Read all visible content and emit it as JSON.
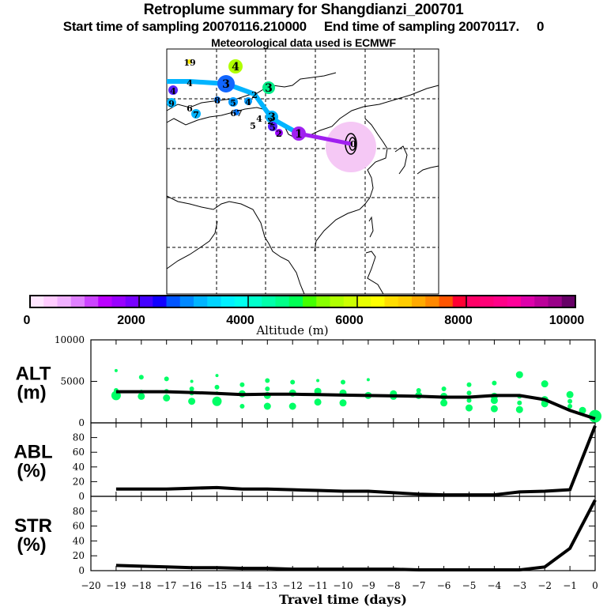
{
  "header": {
    "title": "Retroplume summary for Shangdianzi_200701",
    "subtitle": "Start time of sampling 20070116.210000     End time of sampling 20070117.     0",
    "met_data": "Meteorological data used is ECMWF"
  },
  "map": {
    "plume_color": "#f5c8f5",
    "track_colors": {
      "early": "#00b4ff",
      "late": "#a020f0"
    },
    "labels": [
      {
        "text": "19",
        "lon_idx": 0
      },
      {
        "text": "4"
      },
      {
        "text": "4"
      },
      {
        "text": "3"
      },
      {
        "text": "3"
      },
      {
        "text": "4"
      },
      {
        "text": "9"
      },
      {
        "text": "6"
      },
      {
        "text": "7"
      },
      {
        "text": "8"
      },
      {
        "text": "5"
      },
      {
        "text": "4"
      },
      {
        "text": "67"
      },
      {
        "text": "2"
      },
      {
        "text": "4"
      },
      {
        "text": "5"
      },
      {
        "text": "2"
      },
      {
        "text": "3"
      },
      {
        "text": "5"
      },
      {
        "text": "2"
      },
      {
        "text": "1"
      },
      {
        "text": "0"
      }
    ]
  },
  "colorbar": {
    "title": "Altitude (m)",
    "ticks": [
      "0",
      "2000",
      "4000",
      "6000",
      "8000",
      "10000"
    ],
    "colors": [
      "#ffe6ff",
      "#ffccff",
      "#f0b0ff",
      "#e080ff",
      "#cc44ff",
      "#bb00ff",
      "#9900ff",
      "#7700ff",
      "#4400ff",
      "#1100ff",
      "#0055ff",
      "#0088ff",
      "#00b4ff",
      "#00d4ff",
      "#00f0ff",
      "#00ffee",
      "#00ffcc",
      "#00ffaa",
      "#00ff88",
      "#00ff55",
      "#44ff00",
      "#88ff00",
      "#b0ff00",
      "#ccff00",
      "#e8ff00",
      "#ffff00",
      "#ffdd00",
      "#ffcc00",
      "#ffaa00",
      "#ff8800",
      "#ff5500",
      "#ff0033",
      "#ff0066",
      "#ff0077",
      "#ff0088",
      "#ff0099",
      "#dd00aa",
      "#bb0099",
      "#990088",
      "#660066"
    ]
  },
  "chart_data": [
    {
      "type": "line",
      "name": "ALT",
      "ylabel_line1": "ALT",
      "ylabel_line2": "(m)",
      "yticks": [
        "0",
        "5000",
        "10000"
      ],
      "ylim": [
        0,
        10000
      ],
      "x": [
        -19,
        -18,
        -17,
        -16,
        -15,
        -14,
        -13,
        -12,
        -11,
        -10,
        -9,
        -8,
        -7,
        -6,
        -5,
        -4,
        -3,
        -2,
        -1,
        0
      ],
      "values": [
        3750,
        3750,
        3750,
        3650,
        3550,
        3400,
        3450,
        3450,
        3400,
        3350,
        3300,
        3250,
        3200,
        3100,
        3100,
        3300,
        3300,
        2800,
        1500,
        500
      ],
      "scatter_color": "#00ff66",
      "clusters": [
        {
          "x": -19,
          "alts": [
            6300,
            3900,
            3300
          ],
          "sizes": [
            1,
            2,
            4
          ]
        },
        {
          "x": -18,
          "alts": [
            5500,
            3800,
            3200
          ],
          "sizes": [
            2,
            1,
            3
          ]
        },
        {
          "x": -17,
          "alts": [
            5300,
            3800,
            3000
          ],
          "sizes": [
            2,
            2,
            3
          ]
        },
        {
          "x": -16,
          "alts": [
            5000,
            4100,
            3600,
            2600
          ],
          "sizes": [
            1,
            2,
            2,
            3
          ]
        },
        {
          "x": -15,
          "alts": [
            5700,
            4300,
            3600,
            2600
          ],
          "sizes": [
            1,
            2,
            1,
            4
          ]
        },
        {
          "x": -14,
          "alts": [
            4600,
            3500,
            2000
          ],
          "sizes": [
            2,
            3,
            2
          ]
        },
        {
          "x": -13,
          "alts": [
            5100,
            4100,
            3300,
            2000
          ],
          "sizes": [
            2,
            2,
            3,
            3
          ]
        },
        {
          "x": -12,
          "alts": [
            4900,
            3600,
            2000
          ],
          "sizes": [
            2,
            3,
            3
          ]
        },
        {
          "x": -11,
          "alts": [
            5100,
            3800,
            2500
          ],
          "sizes": [
            1,
            3,
            3
          ]
        },
        {
          "x": -10,
          "alts": [
            4900,
            3600,
            2400
          ],
          "sizes": [
            2,
            3,
            3
          ]
        },
        {
          "x": -9,
          "alts": [
            5200,
            3300
          ],
          "sizes": [
            1,
            3
          ]
        },
        {
          "x": -8,
          "alts": [
            3500,
            3200
          ],
          "sizes": [
            3,
            3
          ]
        },
        {
          "x": -7,
          "alts": [
            3900,
            3300
          ],
          "sizes": [
            2,
            3
          ]
        },
        {
          "x": -6,
          "alts": [
            4100,
            3200,
            2400
          ],
          "sizes": [
            2,
            3,
            3
          ]
        },
        {
          "x": -5,
          "alts": [
            4600,
            3600,
            2700,
            1800
          ],
          "sizes": [
            2,
            2,
            2,
            3
          ]
        },
        {
          "x": -4,
          "alts": [
            4800,
            3200,
            2700,
            1700
          ],
          "sizes": [
            2,
            3,
            3,
            3
          ]
        },
        {
          "x": -3,
          "alts": [
            5800,
            3200,
            2400,
            1600
          ],
          "sizes": [
            3,
            2,
            2,
            3
          ]
        },
        {
          "x": -2,
          "alts": [
            4700,
            2800,
            2300
          ],
          "sizes": [
            3,
            3,
            3
          ]
        },
        {
          "x": -1,
          "alts": [
            3400,
            2600,
            2000
          ],
          "sizes": [
            3,
            2,
            2
          ]
        },
        {
          "x": -0.5,
          "alts": [
            1500
          ],
          "sizes": [
            3
          ]
        },
        {
          "x": 0,
          "alts": [
            800
          ],
          "sizes": [
            5
          ]
        }
      ]
    },
    {
      "type": "line",
      "name": "ABL",
      "ylabel_line1": "ABL",
      "ylabel_line2": "(%)",
      "yticks": [
        "0",
        "20",
        "40",
        "60",
        "80"
      ],
      "ylim": [
        0,
        100
      ],
      "x": [
        -19,
        -18,
        -17,
        -16,
        -15,
        -14,
        -13,
        -12,
        -11,
        -10,
        -9,
        -8,
        -7,
        -6,
        -5,
        -4,
        -3,
        -2,
        -1,
        0
      ],
      "values": [
        10,
        10,
        10,
        11,
        12,
        10,
        10,
        9,
        8,
        7,
        7,
        5,
        3,
        2,
        2,
        2,
        6,
        7,
        9,
        96
      ]
    },
    {
      "type": "line",
      "name": "STR",
      "ylabel_line1": "STR",
      "ylabel_line2": "(%)",
      "yticks": [
        "0",
        "20",
        "40",
        "60",
        "80"
      ],
      "ylim": [
        0,
        100
      ],
      "x": [
        -19,
        -18,
        -17,
        -16,
        -15,
        -14,
        -13,
        -12,
        -11,
        -10,
        -9,
        -8,
        -7,
        -6,
        -5,
        -4,
        -3,
        -2,
        -1,
        0
      ],
      "values": [
        7,
        6,
        5,
        4,
        4,
        3,
        3,
        2,
        2,
        2,
        2,
        2,
        1,
        1,
        1,
        1,
        1,
        5,
        30,
        95
      ]
    }
  ],
  "xaxis": {
    "label": "Travel time (days)",
    "ticks": [
      "-20",
      "-19",
      "-18",
      "-17",
      "-16",
      "-15",
      "-14",
      "-13",
      "-12",
      "-11",
      "-10",
      "-9",
      "-8",
      "-7",
      "-6",
      "-5",
      "-4",
      "-3",
      "-2",
      "-1",
      "0"
    ],
    "xlim": [
      -20,
      0
    ]
  }
}
